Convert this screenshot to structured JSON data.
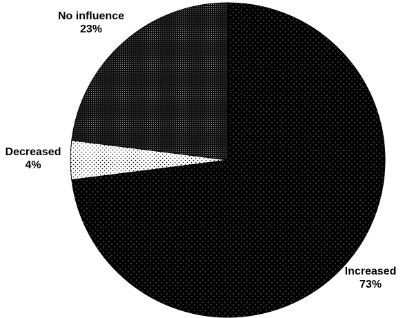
{
  "chart_data": {
    "type": "pie",
    "title": "",
    "slices": [
      {
        "label": "Increased",
        "value": 73,
        "value_label": "73%",
        "color": "#000000",
        "pattern": "sparse-white-dots"
      },
      {
        "label": "Decreased",
        "value": 4,
        "value_label": "4%",
        "color": "#ffffff",
        "pattern": "black-dots"
      },
      {
        "label": "No influence",
        "value": 23,
        "value_label": "23%",
        "color": "#1a1a1a",
        "pattern": "dense-gray-dots"
      }
    ],
    "legend": "none"
  }
}
